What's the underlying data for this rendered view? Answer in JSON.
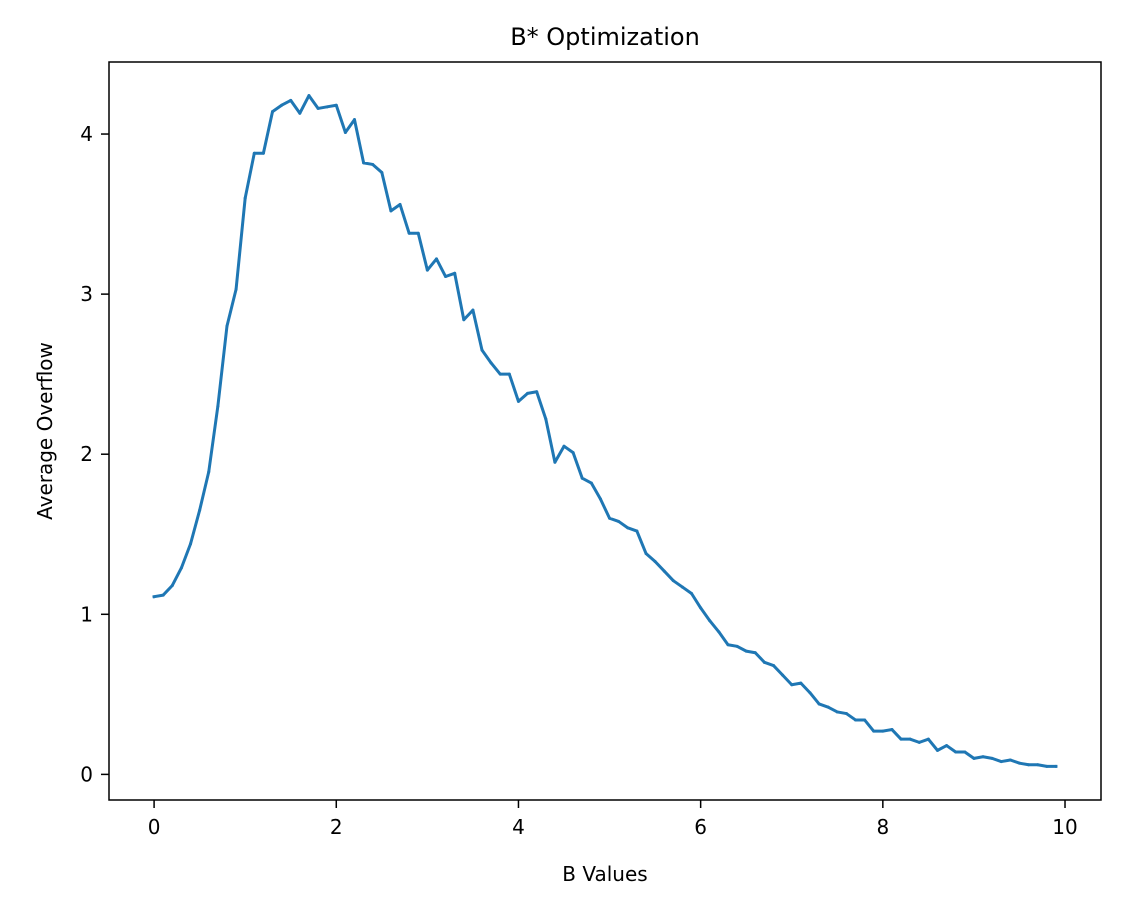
{
  "chart_data": {
    "type": "line",
    "title": "B* Optimization",
    "xlabel": "B Values",
    "ylabel": "Average Overflow",
    "xlim": [
      -0.495,
      10.395
    ],
    "ylim": [
      -0.16,
      4.45
    ],
    "xticks": [
      0,
      2,
      4,
      6,
      8,
      10
    ],
    "xtick_labels": [
      "0",
      "2",
      "4",
      "6",
      "8",
      "10"
    ],
    "yticks": [
      0,
      1,
      2,
      3,
      4
    ],
    "ytick_labels": [
      "0",
      "1",
      "2",
      "3",
      "4"
    ],
    "grid": false,
    "series": [
      {
        "color": "#1f77b4",
        "x": [
          0.0,
          0.1,
          0.2,
          0.3,
          0.4,
          0.5,
          0.6,
          0.7,
          0.8,
          0.9,
          1.0,
          1.1,
          1.2,
          1.3,
          1.4,
          1.5,
          1.6,
          1.7,
          1.8,
          1.9,
          2.0,
          2.1,
          2.2,
          2.3,
          2.4,
          2.5,
          2.6,
          2.7,
          2.8,
          2.9,
          3.0,
          3.1,
          3.2,
          3.3,
          3.4,
          3.5,
          3.6,
          3.7,
          3.8,
          3.9,
          4.0,
          4.1,
          4.2,
          4.3,
          4.4,
          4.5,
          4.6,
          4.7,
          4.8,
          4.9,
          5.0,
          5.1,
          5.2,
          5.3,
          5.4,
          5.5,
          5.6,
          5.7,
          5.8,
          5.9,
          6.0,
          6.1,
          6.2,
          6.3,
          6.4,
          6.5,
          6.6,
          6.7,
          6.8,
          6.9,
          7.0,
          7.1,
          7.2,
          7.3,
          7.4,
          7.5,
          7.6,
          7.7,
          7.8,
          7.9,
          8.0,
          8.1,
          8.2,
          8.3,
          8.4,
          8.5,
          8.6,
          8.7,
          8.8,
          8.9,
          9.0,
          9.1,
          9.2,
          9.3,
          9.4,
          9.5,
          9.6,
          9.7,
          9.8,
          9.9
        ],
        "y": [
          1.11,
          1.12,
          1.18,
          1.29,
          1.44,
          1.65,
          1.89,
          2.3,
          2.8,
          3.03,
          3.6,
          3.88,
          3.88,
          4.14,
          4.18,
          4.21,
          4.13,
          4.24,
          4.16,
          4.17,
          4.18,
          4.01,
          4.09,
          3.82,
          3.81,
          3.76,
          3.52,
          3.56,
          3.38,
          3.38,
          3.15,
          3.22,
          3.11,
          3.13,
          2.84,
          2.9,
          2.65,
          2.57,
          2.5,
          2.5,
          2.33,
          2.38,
          2.39,
          2.22,
          1.95,
          2.05,
          2.01,
          1.85,
          1.82,
          1.72,
          1.6,
          1.58,
          1.54,
          1.52,
          1.38,
          1.33,
          1.27,
          1.21,
          1.17,
          1.13,
          1.04,
          0.96,
          0.89,
          0.81,
          0.8,
          0.77,
          0.76,
          0.7,
          0.68,
          0.62,
          0.56,
          0.57,
          0.51,
          0.44,
          0.42,
          0.39,
          0.38,
          0.34,
          0.34,
          0.27,
          0.27,
          0.28,
          0.22,
          0.22,
          0.2,
          0.22,
          0.15,
          0.18,
          0.14,
          0.14,
          0.1,
          0.11,
          0.1,
          0.08,
          0.09,
          0.07,
          0.06,
          0.06,
          0.05,
          0.05
        ]
      }
    ]
  }
}
